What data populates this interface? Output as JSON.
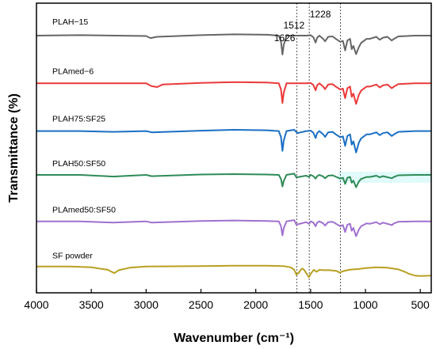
{
  "chart_data": {
    "type": "line",
    "xlabel": "Wavenumber (cm⁻¹)",
    "ylabel": "Transmittance (%)",
    "xlim": [
      4000,
      400
    ],
    "x_reversed": true,
    "x_ticks": [
      4000,
      3500,
      3000,
      2500,
      2000,
      1500,
      1000,
      500
    ],
    "y_ticks": [],
    "grid": false,
    "legend": "none",
    "colors": {
      "axis": "#000000",
      "reference_line": "#555555",
      "band": "#a8f0f0"
    },
    "reference_lines": [
      {
        "x": 1626,
        "label": "1626"
      },
      {
        "x": 1512,
        "label": "1512"
      },
      {
        "x": 1228,
        "label": "1228"
      }
    ],
    "series": [
      {
        "name": "PLAH−15",
        "color": "#666666",
        "baseline": 0.905,
        "points": [
          [
            4000,
            0
          ],
          [
            3600,
            0.1
          ],
          [
            3000,
            -0.1
          ],
          [
            2960,
            -0.6
          ],
          [
            2900,
            -0.3
          ],
          [
            2500,
            0.1
          ],
          [
            2200,
            0.3
          ],
          [
            1900,
            0.2
          ],
          [
            1790,
            0
          ],
          [
            1770,
            -1.5
          ],
          [
            1757,
            -4.6
          ],
          [
            1745,
            -2.3
          ],
          [
            1720,
            0
          ],
          [
            1540,
            0
          ],
          [
            1500,
            0.1
          ],
          [
            1475,
            -0.4
          ],
          [
            1455,
            -1.7
          ],
          [
            1440,
            -0.5
          ],
          [
            1420,
            0
          ],
          [
            1385,
            -0.8
          ],
          [
            1368,
            -1.4
          ],
          [
            1340,
            -0.3
          ],
          [
            1300,
            -0.2
          ],
          [
            1270,
            -0.8
          ],
          [
            1230,
            -1.5
          ],
          [
            1205,
            -1.3
          ],
          [
            1185,
            -3.6
          ],
          [
            1165,
            -1.2
          ],
          [
            1140,
            -0.8
          ],
          [
            1125,
            -3.3
          ],
          [
            1110,
            -2.5
          ],
          [
            1085,
            -4.5
          ],
          [
            1060,
            -2.8
          ],
          [
            1040,
            -1.8
          ],
          [
            990,
            -0.8
          ],
          [
            960,
            -0.8
          ],
          [
            900,
            -0.3
          ],
          [
            870,
            -1.0
          ],
          [
            840,
            -0.5
          ],
          [
            800,
            -0.3
          ],
          [
            760,
            -1.2
          ],
          [
            740,
            -0.8
          ],
          [
            700,
            -0.2
          ],
          [
            550,
            0
          ],
          [
            400,
            0
          ]
        ]
      },
      {
        "name": "PLAmed−6",
        "color": "#ea3a3a",
        "baseline": 0.72,
        "points": [
          [
            4000,
            0
          ],
          [
            3600,
            0
          ],
          [
            3000,
            0
          ],
          [
            2950,
            -0.7
          ],
          [
            2900,
            -0.9
          ],
          [
            2850,
            -0.3
          ],
          [
            2500,
            0.1
          ],
          [
            2200,
            0.3
          ],
          [
            1900,
            0.2
          ],
          [
            1790,
            0
          ],
          [
            1770,
            -1.5
          ],
          [
            1757,
            -4.8
          ],
          [
            1745,
            -2.3
          ],
          [
            1720,
            0
          ],
          [
            1540,
            0
          ],
          [
            1500,
            0.1
          ],
          [
            1475,
            -0.4
          ],
          [
            1455,
            -1.7
          ],
          [
            1440,
            -0.5
          ],
          [
            1420,
            0
          ],
          [
            1385,
            -0.8
          ],
          [
            1368,
            -1.4
          ],
          [
            1340,
            -0.3
          ],
          [
            1300,
            -0.2
          ],
          [
            1270,
            -0.8
          ],
          [
            1230,
            -1.5
          ],
          [
            1205,
            -1.3
          ],
          [
            1185,
            -3.6
          ],
          [
            1165,
            -1.2
          ],
          [
            1140,
            -0.8
          ],
          [
            1125,
            -3.3
          ],
          [
            1110,
            -2.5
          ],
          [
            1085,
            -5.0
          ],
          [
            1060,
            -2.8
          ],
          [
            1040,
            -1.8
          ],
          [
            990,
            -0.8
          ],
          [
            960,
            -0.8
          ],
          [
            900,
            -0.3
          ],
          [
            870,
            -1.0
          ],
          [
            840,
            -0.5
          ],
          [
            800,
            -0.3
          ],
          [
            760,
            -1.2
          ],
          [
            740,
            -0.8
          ],
          [
            700,
            -0.2
          ],
          [
            550,
            0
          ],
          [
            400,
            0
          ]
        ]
      },
      {
        "name": "PLAH75:SF25",
        "color": "#1a6fc4",
        "baseline": 0.535,
        "points": [
          [
            4000,
            0
          ],
          [
            3600,
            0
          ],
          [
            3300,
            -0.2
          ],
          [
            3000,
            0
          ],
          [
            2950,
            -0.3
          ],
          [
            2500,
            0.1
          ],
          [
            2200,
            0.3
          ],
          [
            1900,
            0.2
          ],
          [
            1790,
            0
          ],
          [
            1770,
            -1.5
          ],
          [
            1757,
            -4.8
          ],
          [
            1745,
            -2.3
          ],
          [
            1720,
            0
          ],
          [
            1650,
            0.3
          ],
          [
            1620,
            -0.5
          ],
          [
            1540,
            0
          ],
          [
            1500,
            0.1
          ],
          [
            1475,
            -0.4
          ],
          [
            1455,
            -1.7
          ],
          [
            1440,
            -0.5
          ],
          [
            1420,
            0
          ],
          [
            1385,
            -0.8
          ],
          [
            1368,
            -1.4
          ],
          [
            1340,
            -0.3
          ],
          [
            1300,
            -0.2
          ],
          [
            1270,
            -0.8
          ],
          [
            1230,
            -1.5
          ],
          [
            1205,
            -1.3
          ],
          [
            1185,
            -3.6
          ],
          [
            1165,
            -1.2
          ],
          [
            1140,
            -0.8
          ],
          [
            1125,
            -3.3
          ],
          [
            1110,
            -2.5
          ],
          [
            1085,
            -5.2
          ],
          [
            1060,
            -2.8
          ],
          [
            1040,
            -1.8
          ],
          [
            990,
            -0.8
          ],
          [
            960,
            -0.8
          ],
          [
            900,
            -0.3
          ],
          [
            870,
            -1.0
          ],
          [
            840,
            -0.5
          ],
          [
            800,
            -0.3
          ],
          [
            760,
            -1.2
          ],
          [
            740,
            -0.8
          ],
          [
            700,
            -0.2
          ],
          [
            550,
            0
          ],
          [
            400,
            0
          ]
        ]
      },
      {
        "name": "PLAH50:SF50",
        "color": "#2e8b57",
        "baseline": 0.365,
        "points": [
          [
            4000,
            0
          ],
          [
            3600,
            0
          ],
          [
            3300,
            -0.4
          ],
          [
            3000,
            0
          ],
          [
            2950,
            -0.3
          ],
          [
            2500,
            0.1
          ],
          [
            2200,
            0.2
          ],
          [
            1900,
            0.1
          ],
          [
            1790,
            0
          ],
          [
            1770,
            -1.0
          ],
          [
            1757,
            -2.8
          ],
          [
            1745,
            -1.5
          ],
          [
            1720,
            0
          ],
          [
            1650,
            0.3
          ],
          [
            1630,
            -0.6
          ],
          [
            1540,
            -0.2
          ],
          [
            1515,
            -0.5
          ],
          [
            1500,
            0
          ],
          [
            1475,
            -0.3
          ],
          [
            1455,
            -0.9
          ],
          [
            1440,
            -0.3
          ],
          [
            1420,
            0
          ],
          [
            1385,
            -0.4
          ],
          [
            1368,
            -0.8
          ],
          [
            1340,
            -0.2
          ],
          [
            1300,
            -0.1
          ],
          [
            1230,
            -0.9
          ],
          [
            1205,
            -0.7
          ],
          [
            1185,
            -2.2
          ],
          [
            1165,
            -0.7
          ],
          [
            1140,
            -0.5
          ],
          [
            1125,
            -1.9
          ],
          [
            1110,
            -1.4
          ],
          [
            1085,
            -3.0
          ],
          [
            1060,
            -1.6
          ],
          [
            1040,
            -1.0
          ],
          [
            990,
            -0.5
          ],
          [
            960,
            -0.5
          ],
          [
            900,
            -0.2
          ],
          [
            870,
            -0.6
          ],
          [
            840,
            -0.3
          ],
          [
            760,
            -0.8
          ],
          [
            740,
            -0.5
          ],
          [
            700,
            -0.1
          ],
          [
            550,
            0
          ],
          [
            400,
            0
          ]
        ]
      },
      {
        "name": "PLAmed50:SF50",
        "color": "#a070d0",
        "baseline": 0.185,
        "points": [
          [
            4000,
            0
          ],
          [
            3600,
            0
          ],
          [
            3300,
            -0.3
          ],
          [
            3000,
            0
          ],
          [
            2950,
            -0.3
          ],
          [
            2500,
            0.1
          ],
          [
            2200,
            0.2
          ],
          [
            1900,
            0.1
          ],
          [
            1790,
            0
          ],
          [
            1770,
            -1.2
          ],
          [
            1757,
            -3.4
          ],
          [
            1745,
            -1.7
          ],
          [
            1720,
            0
          ],
          [
            1650,
            0.3
          ],
          [
            1630,
            -0.8
          ],
          [
            1540,
            -0.2
          ],
          [
            1515,
            -0.6
          ],
          [
            1500,
            0
          ],
          [
            1475,
            -0.3
          ],
          [
            1455,
            -1.2
          ],
          [
            1440,
            -0.3
          ],
          [
            1420,
            0
          ],
          [
            1385,
            -0.5
          ],
          [
            1368,
            -1.0
          ],
          [
            1340,
            -0.2
          ],
          [
            1300,
            -0.1
          ],
          [
            1230,
            -1.2
          ],
          [
            1205,
            -0.9
          ],
          [
            1185,
            -2.6
          ],
          [
            1165,
            -0.8
          ],
          [
            1140,
            -0.6
          ],
          [
            1125,
            -2.3
          ],
          [
            1110,
            -1.6
          ],
          [
            1085,
            -3.6
          ],
          [
            1060,
            -2.0
          ],
          [
            1040,
            -1.2
          ],
          [
            990,
            -0.5
          ],
          [
            960,
            -0.6
          ],
          [
            900,
            -0.2
          ],
          [
            870,
            -0.7
          ],
          [
            840,
            -0.3
          ],
          [
            760,
            -0.9
          ],
          [
            740,
            -0.5
          ],
          [
            700,
            -0.1
          ],
          [
            550,
            0
          ],
          [
            400,
            0
          ]
        ]
      },
      {
        "name": "SF powder",
        "color": "#b8a020",
        "baseline": 0.01,
        "points": [
          [
            4000,
            0
          ],
          [
            3700,
            0
          ],
          [
            3500,
            -0.2
          ],
          [
            3350,
            -0.8
          ],
          [
            3290,
            -1.6
          ],
          [
            3250,
            -0.9
          ],
          [
            3150,
            -0.3
          ],
          [
            3000,
            0
          ],
          [
            2500,
            0.1
          ],
          [
            2200,
            0.2
          ],
          [
            1900,
            0.2
          ],
          [
            1750,
            0.1
          ],
          [
            1680,
            -0.2
          ],
          [
            1650,
            -0.8
          ],
          [
            1630,
            -2.0
          ],
          [
            1610,
            -1.6
          ],
          [
            1590,
            -0.8
          ],
          [
            1575,
            -0.5
          ],
          [
            1560,
            -0.8
          ],
          [
            1540,
            -1.6
          ],
          [
            1515,
            -2.6
          ],
          [
            1495,
            -1.6
          ],
          [
            1470,
            -0.8
          ],
          [
            1445,
            -1.3
          ],
          [
            1420,
            -0.8
          ],
          [
            1390,
            -0.9
          ],
          [
            1330,
            -0.9
          ],
          [
            1260,
            -1.1
          ],
          [
            1235,
            -1.5
          ],
          [
            1210,
            -1.2
          ],
          [
            1150,
            -0.8
          ],
          [
            1060,
            -0.6
          ],
          [
            1000,
            -0.4
          ],
          [
            900,
            -0.2
          ],
          [
            800,
            -0.3
          ],
          [
            700,
            -0.7
          ],
          [
            640,
            -1.3
          ],
          [
            600,
            -1.8
          ],
          [
            550,
            -2.2
          ],
          [
            500,
            -2.3
          ],
          [
            400,
            -2.2
          ]
        ]
      }
    ]
  }
}
